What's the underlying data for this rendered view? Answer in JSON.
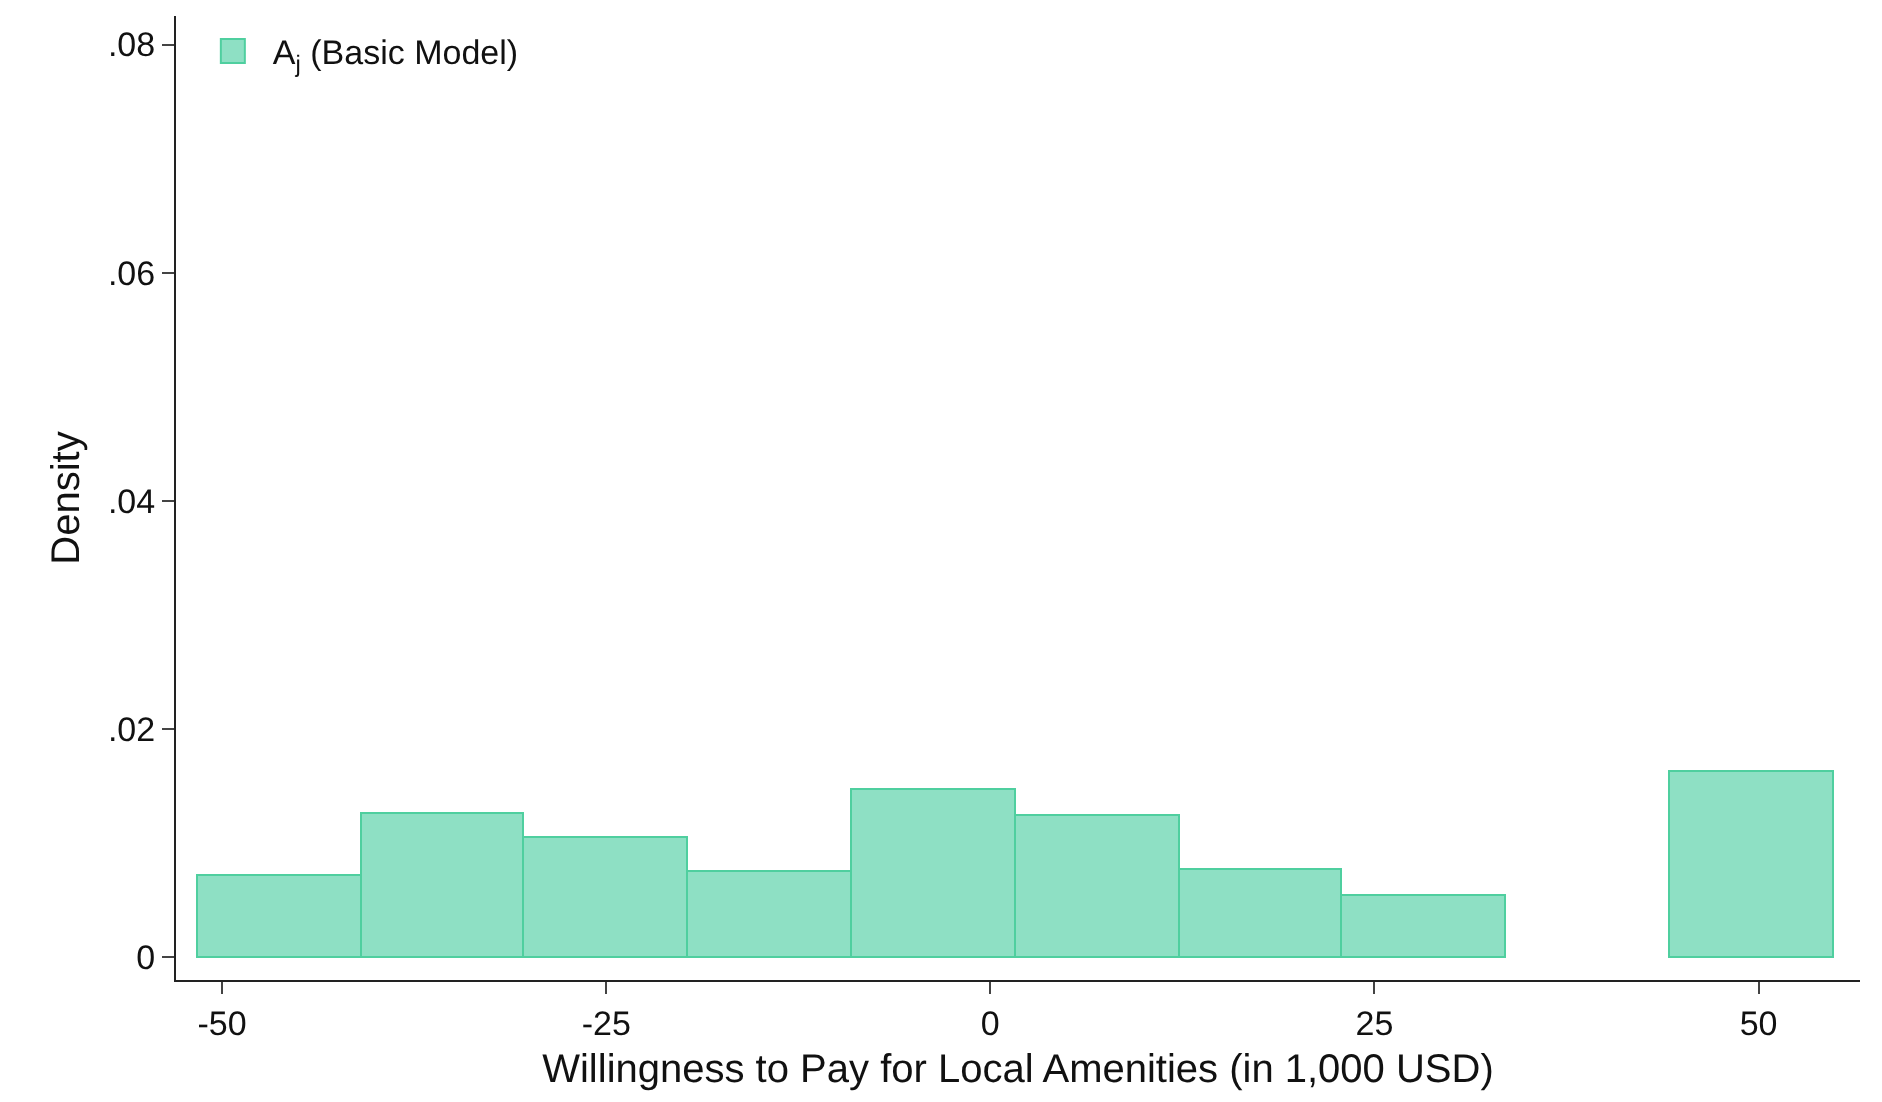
{
  "chart_data": {
    "type": "histogram",
    "xlabel": "Willingness to Pay for Local Amenities (in 1,000 USD)",
    "ylabel": "Density",
    "bins": [
      -51.6,
      -40.95,
      -30.3,
      -19.65,
      -9.0,
      1.65,
      12.3,
      22.95,
      33.6,
      44.25,
      54.9
    ],
    "series": [
      {
        "name": "A$_{j}$ (Basic Model)",
        "color": "#8ee0c4",
        "values": [
          0.0072,
          0.0125,
          0.0105,
          0.0075,
          0.0146,
          0.0123,
          0.0077,
          0.0054,
          0,
          0.0163
        ]
      }
    ],
    "xlim": [
      -53,
      56.6
    ],
    "xticks": [
      {
        "value": -50,
        "label": "-50"
      },
      {
        "value": -25,
        "label": "-25"
      },
      {
        "value": 0,
        "label": "0"
      },
      {
        "value": 25,
        "label": "25"
      },
      {
        "value": 50,
        "label": "50"
      }
    ],
    "ylim": [
      -0.002,
      0.0825
    ],
    "yticks": [
      {
        "value": 0,
        "label": "0"
      },
      {
        "value": 0.02,
        "label": ".02"
      },
      {
        "value": 0.04,
        "label": ".04"
      },
      {
        "value": 0.06,
        "label": ".06"
      },
      {
        "value": 0.08,
        "label": ".08"
      }
    ],
    "legend": "top left"
  }
}
